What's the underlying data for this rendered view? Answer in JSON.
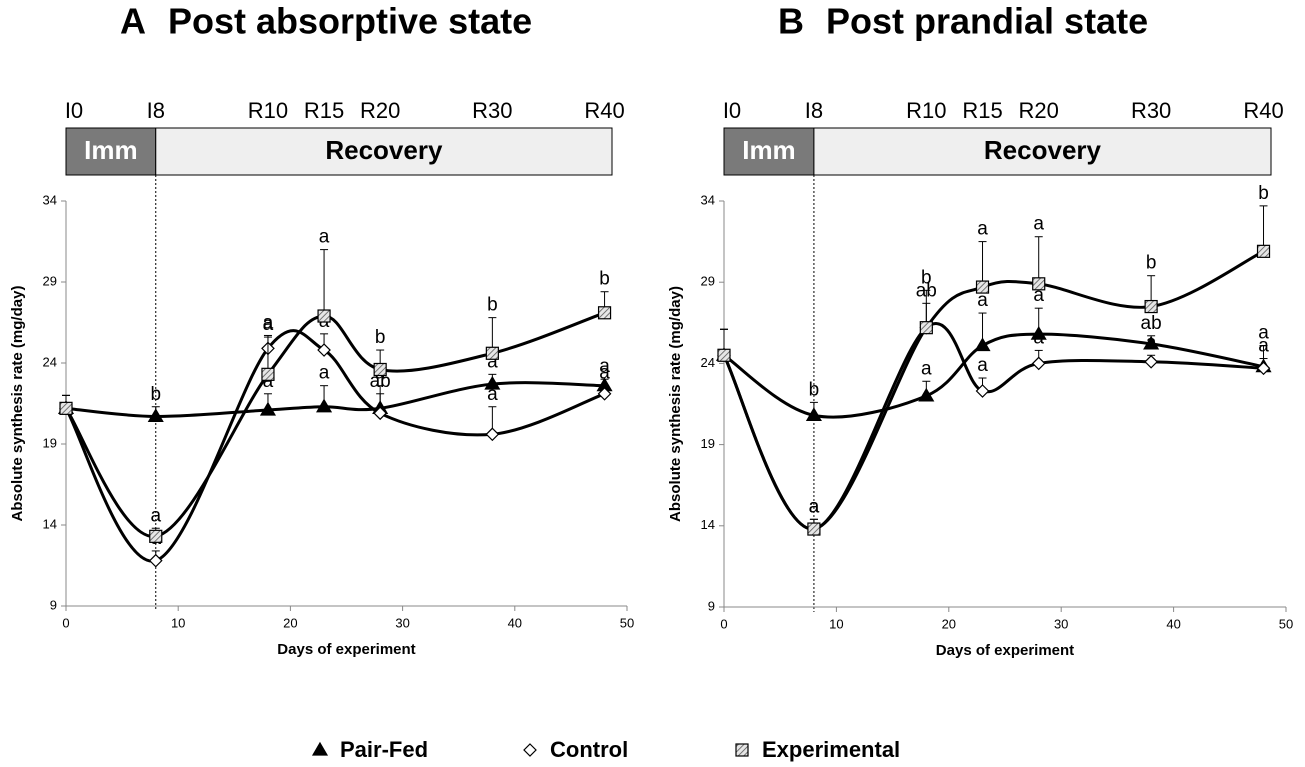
{
  "chart_data": [
    {
      "type": "line",
      "panel_label": "A",
      "title": "Post absorptive state",
      "xlabel": "Days of experiment",
      "ylabel": "Absolute synthesis rate (mg/day)",
      "x": [
        0,
        8,
        18,
        23,
        28,
        38,
        48
      ],
      "timepoint_labels": [
        "I0",
        "I8",
        "R10",
        "R15",
        "R20",
        "R30",
        "R40"
      ],
      "phase_labels": [
        "Imm",
        "Recovery"
      ],
      "xlim": [
        0,
        50
      ],
      "xticks": [
        0,
        10,
        20,
        30,
        40,
        50
      ],
      "ylim": [
        9,
        34
      ],
      "yticks": [
        9,
        14,
        19,
        24,
        29,
        34
      ],
      "series": [
        {
          "name": "Pair-Fed",
          "color": "#000000",
          "marker": "triangle",
          "values": [
            21.2,
            20.7,
            21.1,
            21.3,
            21.2,
            22.7,
            22.6
          ],
          "errors": [
            0.8,
            0.6,
            1.0,
            1.3,
            1.4,
            0.6,
            0.4
          ],
          "letters": [
            null,
            "b",
            "a",
            "a",
            "a",
            "a",
            "a"
          ]
        },
        {
          "name": "Control",
          "color": "#ffffff",
          "marker": "diamond",
          "values": [
            21.2,
            11.8,
            24.9,
            24.8,
            20.9,
            19.6,
            22.1
          ],
          "errors": [
            0.8,
            0.6,
            0.7,
            1.0,
            1.2,
            1.7,
            0.5
          ],
          "letters": [
            null,
            "a",
            "a",
            "a",
            "ab",
            "a",
            "a"
          ]
        },
        {
          "name": "Experimental",
          "color": "#bbbbbb",
          "marker": "square",
          "values": [
            21.2,
            13.3,
            23.3,
            26.9,
            23.6,
            24.6,
            27.1
          ],
          "errors": [
            0.8,
            0.5,
            2.4,
            4.1,
            1.2,
            2.2,
            1.3
          ],
          "letters": [
            null,
            "a",
            "a",
            "a",
            "b",
            "b",
            "b"
          ]
        }
      ]
    },
    {
      "type": "line",
      "panel_label": "B",
      "title": "Post prandial state",
      "xlabel": "Days of experiment",
      "ylabel": "Absolute synthesis rate (mg/day)",
      "x": [
        0,
        8,
        18,
        23,
        28,
        38,
        48
      ],
      "timepoint_labels": [
        "I0",
        "I8",
        "R10",
        "R15",
        "R20",
        "R30",
        "R40"
      ],
      "phase_labels": [
        "Imm",
        "Recovery"
      ],
      "xlim": [
        0,
        50
      ],
      "xticks": [
        0,
        10,
        20,
        30,
        40,
        50
      ],
      "ylim": [
        9,
        34
      ],
      "yticks": [
        9,
        14,
        19,
        24,
        29,
        34
      ],
      "series": [
        {
          "name": "Pair-Fed",
          "color": "#000000",
          "marker": "triangle",
          "values": [
            24.5,
            20.8,
            22.0,
            25.1,
            25.8,
            25.2,
            23.8
          ],
          "errors": [
            1.6,
            0.8,
            0.9,
            2.0,
            1.6,
            0.5,
            0.5
          ],
          "letters": [
            null,
            "b",
            "a",
            "a",
            "a",
            "ab",
            "a"
          ]
        },
        {
          "name": "Control",
          "color": "#ffffff",
          "marker": "diamond",
          "values": [
            24.5,
            13.8,
            26.2,
            22.3,
            24.0,
            24.1,
            23.7
          ],
          "errors": [
            1.6,
            0.6,
            1.5,
            0.8,
            0.8,
            0.4,
            1.4
          ],
          "letters": [
            null,
            "a",
            "ab",
            "a",
            "a",
            "a",
            "a"
          ]
        },
        {
          "name": "Experimental",
          "color": "#bbbbbb",
          "marker": "square",
          "values": [
            24.5,
            13.8,
            26.2,
            28.7,
            28.9,
            27.5,
            30.9
          ],
          "errors": [
            1.6,
            0.6,
            2.3,
            2.8,
            2.9,
            1.9,
            2.8
          ],
          "letters": [
            null,
            "a",
            "b",
            "a",
            "a",
            "b",
            "b"
          ]
        }
      ]
    }
  ]
}
